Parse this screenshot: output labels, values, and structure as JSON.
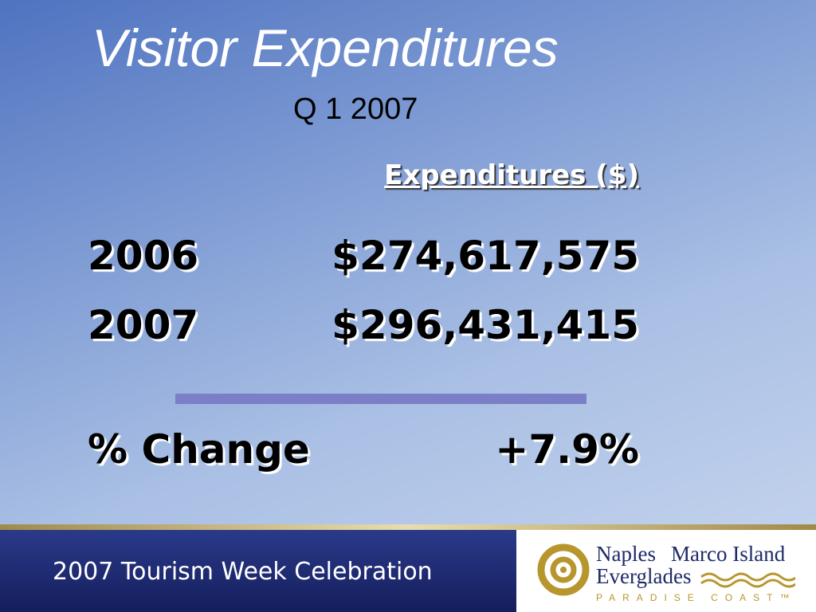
{
  "title": "Visitor Expenditures",
  "subtitle": "Q 1 2007",
  "table": {
    "header": "Expenditures ($)",
    "rows": [
      [
        "2006",
        "$274,617,575"
      ],
      [
        "2007",
        "$296,431,415"
      ]
    ],
    "change": [
      "% Change",
      "+7.9%"
    ]
  },
  "footer": {
    "text": "2007 Tourism Week Celebration",
    "logo": {
      "line1a": "Naples",
      "line1b": "Marco Island",
      "line2": "Everglades",
      "line3": "PARADISE COAST™"
    }
  }
}
